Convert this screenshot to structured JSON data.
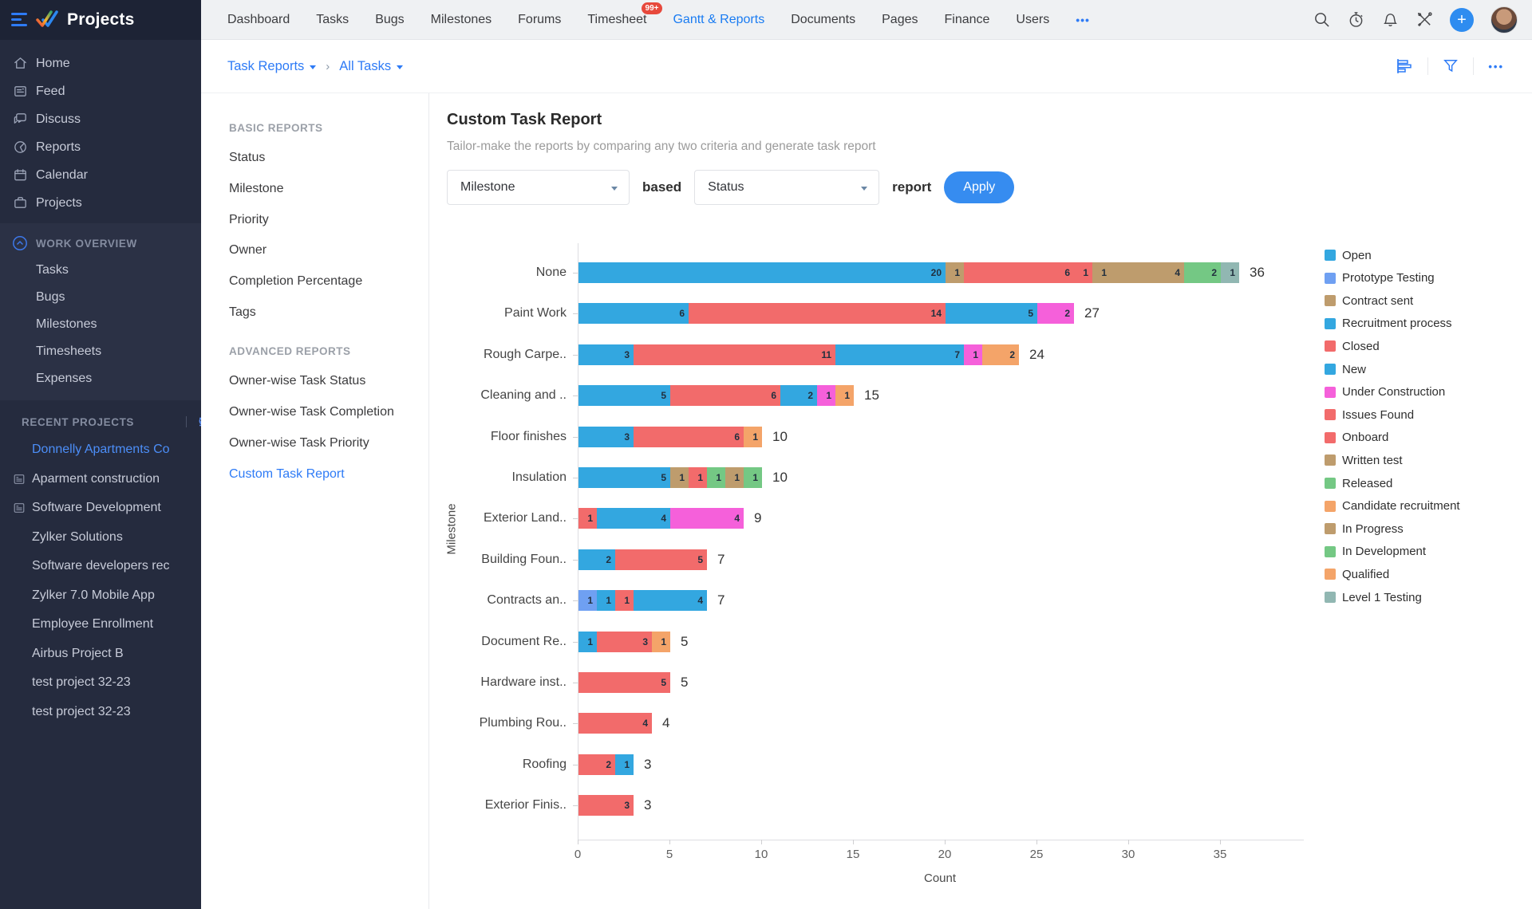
{
  "colors": {
    "accent": "#2E7BF6",
    "nav_active": "#1A7CF2",
    "sidebar_bg": "#252B3E",
    "badge_bg": "#E7493C",
    "apply_bg": "#368CF0"
  },
  "topnav": {
    "brand": "Projects",
    "items": [
      {
        "label": "Dashboard"
      },
      {
        "label": "Tasks"
      },
      {
        "label": "Bugs"
      },
      {
        "label": "Milestones"
      },
      {
        "label": "Forums"
      },
      {
        "label": "Timesheet",
        "badge": "99+"
      },
      {
        "label": "Gantt & Reports",
        "active": true
      },
      {
        "label": "Documents"
      },
      {
        "label": "Pages"
      },
      {
        "label": "Finance"
      },
      {
        "label": "Users"
      },
      {
        "label": "•••",
        "overflow": true
      }
    ],
    "right_icons": [
      "search-icon",
      "timer-icon",
      "notifications-bell-icon",
      "tools-icon",
      "add-plus-button",
      "user-avatar"
    ]
  },
  "sidebar": {
    "main_items": [
      {
        "label": "Home",
        "icon": "home-icon"
      },
      {
        "label": "Feed",
        "icon": "feed-icon"
      },
      {
        "label": "Discuss",
        "icon": "discuss-icon"
      },
      {
        "label": "Reports",
        "icon": "reports-icon"
      },
      {
        "label": "Calendar",
        "icon": "calendar-icon"
      },
      {
        "label": "Projects",
        "icon": "projects-icon"
      }
    ],
    "work_overview": {
      "title": "WORK OVERVIEW",
      "icon": "chevron-up-circle-icon",
      "items": [
        "Tasks",
        "Bugs",
        "Milestones",
        "Timesheets",
        "Expenses"
      ]
    },
    "recent_projects": {
      "title": "RECENT PROJECTS",
      "header_icons": [
        "filter-sliders-icon",
        "search-icon"
      ],
      "items": [
        {
          "label": "Donnelly Apartments Co",
          "active": true
        },
        {
          "label": "Aparment construction",
          "doc_icon": true
        },
        {
          "label": "Software Development",
          "doc_icon": true
        },
        {
          "label": "Zylker Solutions"
        },
        {
          "label": "Software developers rec"
        },
        {
          "label": "Zylker 7.0 Mobile App"
        },
        {
          "label": "Employee Enrollment"
        },
        {
          "label": "Airbus Project B"
        },
        {
          "label": "test project 32-23"
        },
        {
          "label": "test project 32-23"
        }
      ]
    }
  },
  "breadcrumb": {
    "first": "Task Reports",
    "second": "All Tasks",
    "separator": "›",
    "toolbar_icons": [
      "report-chart-icon",
      "filter-funnel-icon",
      "more-options-icon"
    ]
  },
  "reports_panel": {
    "sections": [
      {
        "title": "BASIC REPORTS",
        "items": [
          "Status",
          "Milestone",
          "Priority",
          "Owner",
          "Completion Percentage",
          "Tags"
        ]
      },
      {
        "title": "ADVANCED REPORTS",
        "items": [
          "Owner-wise Task Status",
          "Owner-wise Task Completion",
          "Owner-wise Task Priority",
          "Custom Task Report"
        ]
      }
    ],
    "active_item": "Custom Task Report"
  },
  "main": {
    "title": "Custom Task Report",
    "subtitle": "Tailor-make the reports by comparing any two criteria and generate task report",
    "controls": {
      "criteria1": "Milestone",
      "based_label": "based",
      "criteria2": "Status",
      "report_label": "report",
      "apply_label": "Apply"
    }
  },
  "chart_data": {
    "type": "bar",
    "stacked": true,
    "orientation": "horizontal",
    "xlabel": "Count",
    "ylabel": "Milestone",
    "xlim": [
      0,
      39
    ],
    "xticks": [
      0,
      5,
      10,
      15,
      20,
      25,
      30,
      35
    ],
    "grid": false,
    "legend_position": "right",
    "legend": [
      {
        "label": "Open",
        "color": "#33A7E0"
      },
      {
        "label": "Prototype Testing",
        "color": "#6FA0F2"
      },
      {
        "label": "Contract sent",
        "color": "#BE9C6D"
      },
      {
        "label": "Recruitment process",
        "color": "#33A7E0"
      },
      {
        "label": "Closed",
        "color": "#F26B6B"
      },
      {
        "label": "New",
        "color": "#33A7E0"
      },
      {
        "label": "Under Construction",
        "color": "#F560DA"
      },
      {
        "label": "Issues Found",
        "color": "#F26B6B"
      },
      {
        "label": "Onboard",
        "color": "#F26B6B"
      },
      {
        "label": "Written test",
        "color": "#BE9C6D"
      },
      {
        "label": "Released",
        "color": "#74C884"
      },
      {
        "label": "Candidate recruitment",
        "color": "#F4A469"
      },
      {
        "label": "In Progress",
        "color": "#BE9C6D"
      },
      {
        "label": "In Development",
        "color": "#74C884"
      },
      {
        "label": "Qualified",
        "color": "#F4A469"
      },
      {
        "label": "Level 1 Testing",
        "color": "#91B7B2"
      }
    ],
    "rows": [
      {
        "category": "None",
        "total": 36,
        "segments": [
          {
            "status": "Open",
            "value": 20
          },
          {
            "status": "Contract sent",
            "value": 1
          },
          {
            "status": "Closed",
            "value": 6
          },
          {
            "status": "Onboard",
            "value": 1
          },
          {
            "status": "Written test",
            "value": 1
          },
          {
            "status": "In Progress",
            "value": 4
          },
          {
            "status": "Released",
            "value": 2
          },
          {
            "status": "Level 1 Testing",
            "value": 1
          }
        ]
      },
      {
        "category": "Paint Work",
        "total": 27,
        "segments": [
          {
            "status": "Open",
            "value": 6
          },
          {
            "status": "Closed",
            "value": 14
          },
          {
            "status": "New",
            "value": 5
          },
          {
            "status": "Under Construction",
            "value": 2
          }
        ]
      },
      {
        "category": "Rough Carpe..",
        "total": 24,
        "segments": [
          {
            "status": "Open",
            "value": 3
          },
          {
            "status": "Closed",
            "value": 11
          },
          {
            "status": "New",
            "value": 7
          },
          {
            "status": "Under Construction",
            "value": 1
          },
          {
            "status": "Candidate recruitment",
            "value": 2
          }
        ]
      },
      {
        "category": "Cleaning and ..",
        "total": 15,
        "segments": [
          {
            "status": "Open",
            "value": 5
          },
          {
            "status": "Closed",
            "value": 6
          },
          {
            "status": "New",
            "value": 2
          },
          {
            "status": "Under Construction",
            "value": 1
          },
          {
            "status": "Qualified",
            "value": 1
          }
        ]
      },
      {
        "category": "Floor finishes",
        "total": 10,
        "segments": [
          {
            "status": "Open",
            "value": 3
          },
          {
            "status": "Closed",
            "value": 6
          },
          {
            "status": "Qualified",
            "value": 1
          }
        ]
      },
      {
        "category": "Insulation",
        "total": 10,
        "segments": [
          {
            "status": "Open",
            "value": 5
          },
          {
            "status": "Written test",
            "value": 1
          },
          {
            "status": "Issues Found",
            "value": 1
          },
          {
            "status": "In Development",
            "value": 1
          },
          {
            "status": "In Progress",
            "value": 1
          },
          {
            "status": "Released",
            "value": 1
          }
        ]
      },
      {
        "category": "Exterior Land..",
        "total": 9,
        "segments": [
          {
            "status": "Closed",
            "value": 1
          },
          {
            "status": "Open",
            "value": 4
          },
          {
            "status": "Under Construction",
            "value": 4
          }
        ]
      },
      {
        "category": "Building Foun..",
        "total": 7,
        "segments": [
          {
            "status": "Open",
            "value": 2
          },
          {
            "status": "Closed",
            "value": 5
          }
        ]
      },
      {
        "category": "Contracts an..",
        "total": 7,
        "segments": [
          {
            "status": "Prototype Testing",
            "value": 1
          },
          {
            "status": "Open",
            "value": 1
          },
          {
            "status": "Closed",
            "value": 1
          },
          {
            "status": "New",
            "value": 4
          }
        ]
      },
      {
        "category": "Document Re..",
        "total": 5,
        "segments": [
          {
            "status": "Open",
            "value": 1
          },
          {
            "status": "Closed",
            "value": 3
          },
          {
            "status": "Qualified",
            "value": 1
          }
        ]
      },
      {
        "category": "Hardware inst..",
        "total": 5,
        "segments": [
          {
            "status": "Closed",
            "value": 5
          }
        ]
      },
      {
        "category": "Plumbing Rou..",
        "total": 4,
        "segments": [
          {
            "status": "Closed",
            "value": 4
          }
        ]
      },
      {
        "category": "Roofing",
        "total": 3,
        "segments": [
          {
            "status": "Closed",
            "value": 2
          },
          {
            "status": "Open",
            "value": 1
          }
        ]
      },
      {
        "category": "Exterior Finis..",
        "total": 3,
        "segments": [
          {
            "status": "Closed",
            "value": 3
          }
        ]
      }
    ]
  }
}
